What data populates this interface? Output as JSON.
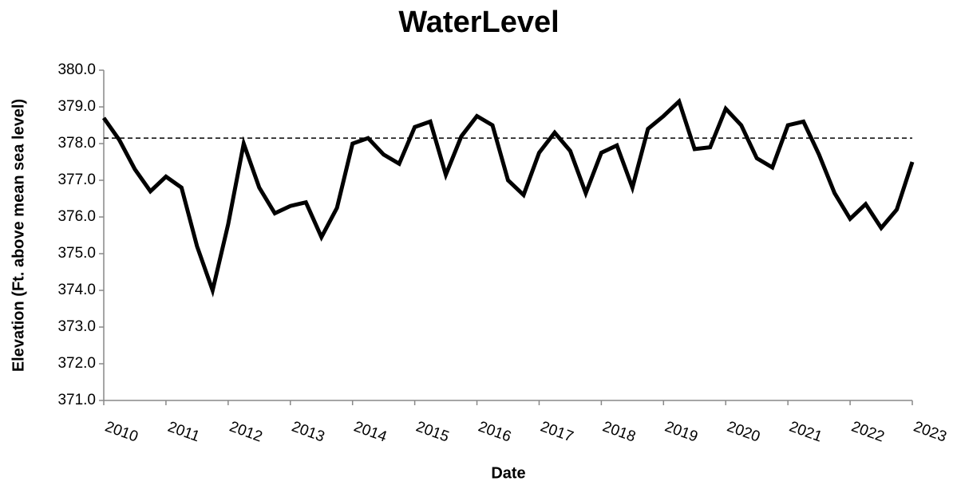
{
  "chart_data": {
    "type": "line",
    "title": "WaterLevel",
    "x_label": "Date",
    "y_label": "Elevation (Ft. above mean sea level)",
    "x": [
      2010,
      2010.25,
      2010.5,
      2010.75,
      2011,
      2011.25,
      2011.5,
      2011.75,
      2012,
      2012.25,
      2012.5,
      2012.75,
      2013,
      2013.25,
      2013.5,
      2013.75,
      2014,
      2014.25,
      2014.5,
      2014.75,
      2015,
      2015.25,
      2015.5,
      2015.75,
      2016,
      2016.25,
      2016.5,
      2016.75,
      2017,
      2017.25,
      2017.5,
      2017.75,
      2018,
      2018.25,
      2018.5,
      2018.75,
      2019,
      2019.25,
      2019.5,
      2019.75,
      2020,
      2020.25,
      2020.5,
      2020.75,
      2021,
      2021.25,
      2021.5,
      2021.75,
      2022,
      2022.25,
      2022.5,
      2022.75,
      2023
    ],
    "values": [
      378.7,
      378.1,
      377.3,
      376.7,
      377.1,
      376.8,
      375.2,
      374.0,
      375.8,
      378.0,
      376.8,
      376.1,
      376.3,
      376.4,
      375.45,
      376.25,
      378.0,
      378.15,
      377.7,
      377.45,
      378.45,
      378.6,
      377.15,
      378.2,
      378.75,
      378.5,
      377.0,
      376.6,
      377.75,
      378.3,
      377.8,
      376.65,
      377.75,
      377.95,
      376.8,
      378.4,
      378.75,
      379.15,
      377.85,
      377.9,
      378.95,
      378.5,
      377.6,
      377.35,
      378.5,
      378.6,
      377.7,
      376.65,
      375.95,
      376.35,
      375.7,
      376.2,
      377.5
    ],
    "color": "#000000",
    "reference_line": 378.15,
    "xlim": [
      2010,
      2023
    ],
    "xticks": [
      2010,
      2011,
      2012,
      2013,
      2014,
      2015,
      2016,
      2017,
      2018,
      2019,
      2020,
      2021,
      2022,
      2023
    ],
    "ylim": [
      371,
      380
    ],
    "yticks": [
      {
        "value": 371,
        "label": "371.0"
      },
      {
        "value": 372,
        "label": "372.0"
      },
      {
        "value": 373,
        "label": "373.0"
      },
      {
        "value": 374,
        "label": "374.0"
      },
      {
        "value": 375,
        "label": "375.0"
      },
      {
        "value": 376,
        "label": "376.0"
      },
      {
        "value": 377,
        "label": "377.0"
      },
      {
        "value": 378,
        "label": "378.0"
      },
      {
        "value": 379,
        "label": "379.0"
      },
      {
        "value": 380,
        "label": "380.0"
      }
    ],
    "grid": false
  }
}
